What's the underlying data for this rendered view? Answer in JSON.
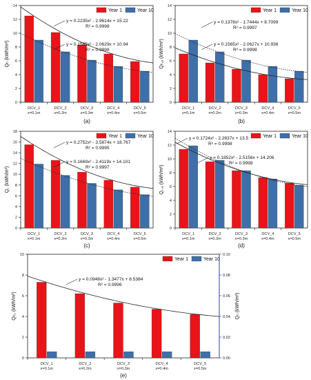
{
  "panel_labels": [
    "(a)",
    "(b)",
    "(c)",
    "(d)",
    "(e)"
  ],
  "colors": {
    "year1": "#e8141a",
    "year10": "#3e6fa8",
    "right_axis": "#2b3fb0"
  },
  "chart_data": [
    {
      "type": "bar",
      "panel": "(a)",
      "categories": [
        "DCV_1",
        "DCV_2",
        "DCV_3",
        "DCV_4",
        "DCV_5"
      ],
      "category_sublabels": [
        "x=0.1m",
        "x=0.2m",
        "x=0.3m",
        "x=0.4m",
        "x=0.5m"
      ],
      "series": [
        {
          "name": "Year 1",
          "values": [
            12.5,
            10.1,
            8.3,
            7.0,
            5.9
          ]
        },
        {
          "name": "Year 10",
          "values": [
            9.0,
            7.3,
            6.1,
            5.2,
            4.5
          ]
        }
      ],
      "ylabel": "Qₕ (kWh/m²)",
      "ylim": [
        0,
        14
      ],
      "yticks": [
        0,
        2,
        4,
        6,
        8,
        10,
        12,
        14
      ],
      "legend_position": "top-right",
      "fits": [
        {
          "series": "Year 1",
          "style": "solid",
          "equation": "y = 0.2235x² - 2.9614x + 15.22",
          "r2": "R² = 0.9998",
          "coef": [
            0.2235,
            -2.9614,
            15.22
          ]
        },
        {
          "series": "Year 10",
          "style": "dotted",
          "equation": "y = 0.1565x² - 2.0629x + 10.94",
          "r2": "R² = 0.9998",
          "coef": [
            0.1565,
            -2.0629,
            10.94
          ]
        }
      ]
    },
    {
      "type": "bar",
      "panel": "(b)",
      "categories": [
        "DCV_1",
        "DCV_2",
        "DCV_3",
        "DCV_4",
        "DCV_5"
      ],
      "category_sublabels": [
        "x=0.1m",
        "x=0.2m",
        "x=0.3m",
        "x=0.4m",
        "x=0.5m"
      ],
      "series": [
        {
          "name": "Year 1",
          "values": [
            7.0,
            5.7,
            4.8,
            4.0,
            3.4
          ]
        },
        {
          "name": "Year 10",
          "values": [
            9.0,
            7.3,
            6.1,
            5.2,
            4.5
          ]
        }
      ],
      "ylabel": "Qₕ,ₐ (kWh/m²)",
      "ylim": [
        0,
        14
      ],
      "yticks": [
        0,
        2,
        4,
        6,
        8,
        10,
        12,
        14
      ],
      "legend_position": "top-right",
      "fits": [
        {
          "series": "Year 1",
          "style": "solid",
          "equation": "y = 0.1378x² - 1.7444x + 8.7099",
          "r2": "R² = 0.9997",
          "coef": [
            0.1378,
            -1.7444,
            8.7099
          ]
        },
        {
          "series": "Year 10",
          "style": "dotted",
          "equation": "y = 0.1565x² - 2.0627x + 10.938",
          "r2": "R² = 0.9998",
          "coef": [
            0.1565,
            -2.0627,
            10.938
          ]
        }
      ]
    },
    {
      "type": "bar",
      "panel": "(c)",
      "categories": [
        "DCV_1",
        "DCV_2",
        "DCV_3",
        "DCV_4",
        "DCV_5"
      ],
      "category_sublabels": [
        "x=0.1m",
        "x=0.2m",
        "x=0.3m",
        "x=0.4m",
        "x=0.5m"
      ],
      "series": [
        {
          "name": "Year 1",
          "values": [
            15.5,
            12.6,
            10.4,
            8.9,
            7.6
          ]
        },
        {
          "name": "Year 10",
          "values": [
            11.9,
            9.8,
            8.3,
            7.1,
            6.2
          ]
        }
      ],
      "ylabel": "Q꜀ (kWh/m²)",
      "ylim": [
        0,
        18
      ],
      "yticks": [
        0,
        2,
        4,
        6,
        8,
        10,
        12,
        14,
        16,
        18
      ],
      "legend_position": "top-right",
      "fits": [
        {
          "series": "Year 1",
          "style": "solid",
          "equation": "y = 0.2752x² - 3.5874x + 18.767",
          "r2": "R² = 0.9995",
          "coef": [
            0.2752,
            -3.5874,
            18.767
          ]
        },
        {
          "series": "Year 10",
          "style": "dotted",
          "equation": "y = 0.1669x² - 2.4119x + 14.101",
          "r2": "R² = 0.9997",
          "coef": [
            0.1669,
            -2.4119,
            14.101
          ]
        }
      ]
    },
    {
      "type": "bar",
      "panel": "(d)",
      "categories": [
        "DCV_1",
        "DCV_2",
        "DCV_3",
        "DCV_4",
        "DCV_5"
      ],
      "category_sublabels": [
        "x=0.1m",
        "x=0.2m",
        "x=0.3m",
        "x=0.4m",
        "x=0.5m"
      ],
      "series": [
        {
          "name": "Year 1",
          "values": [
            11.4,
            9.6,
            8.3,
            7.3,
            6.5
          ]
        },
        {
          "name": "Year 10",
          "values": [
            11.9,
            9.8,
            8.3,
            7.1,
            6.2
          ]
        }
      ],
      "ylabel": "Q꜀,ₐ (kWh/m²)",
      "ylim": [
        0,
        14
      ],
      "yticks": [
        0,
        2,
        4,
        6,
        8,
        10,
        12,
        14
      ],
      "legend_position": "top-right",
      "fits": [
        {
          "series": "Year 1",
          "style": "solid",
          "equation": "y = 0.1724x² - 2.2637x + 13.5",
          "r2": "R² = 0.9998",
          "coef": [
            0.1724,
            -2.2637,
            13.5
          ]
        },
        {
          "series": "Year 10",
          "style": "dotted",
          "equation": "y = 0.1852x² - 2.5156x + 14.206",
          "r2": "R² = 0.9998",
          "coef": [
            0.1852,
            -2.5156,
            14.206
          ]
        }
      ]
    },
    {
      "type": "bar",
      "panel": "(e)",
      "categories": [
        "DCV_1",
        "DCV_2",
        "DCV_3",
        "DCV_4",
        "DCV_5"
      ],
      "category_sublabels": [
        "x=0.1m",
        "x=0.2m",
        "x=0.3m",
        "x=0.4m",
        "x=0.5m"
      ],
      "series": [
        {
          "name": "Year 1",
          "axis": "left",
          "values": [
            7.3,
            6.2,
            5.3,
            4.7,
            4.2
          ]
        },
        {
          "name": "Year 10",
          "axis": "right",
          "values": [
            0.006,
            0.006,
            0.006,
            0.006,
            0.006
          ]
        }
      ],
      "ylabel": "Qₕ꜀ (kWh/m²)",
      "ylim": [
        0,
        10
      ],
      "yticks": [
        0,
        2,
        4,
        6,
        8,
        10
      ],
      "y2label": "Qₙ (kWh/m²)",
      "y2lim": [
        0,
        0.1
      ],
      "y2ticks": [
        "0.00",
        "0.02",
        "0.04",
        "0.06",
        "0.08",
        "0.10"
      ],
      "legend_position": "top-right",
      "fits": [
        {
          "series": "Year 1",
          "style": "solid",
          "equation": "y = 0.0948x² - 1.3477x + 8.5384",
          "r2": "R² = 0.9996",
          "coef": [
            0.0948,
            -1.3477,
            8.5384
          ]
        }
      ]
    }
  ]
}
